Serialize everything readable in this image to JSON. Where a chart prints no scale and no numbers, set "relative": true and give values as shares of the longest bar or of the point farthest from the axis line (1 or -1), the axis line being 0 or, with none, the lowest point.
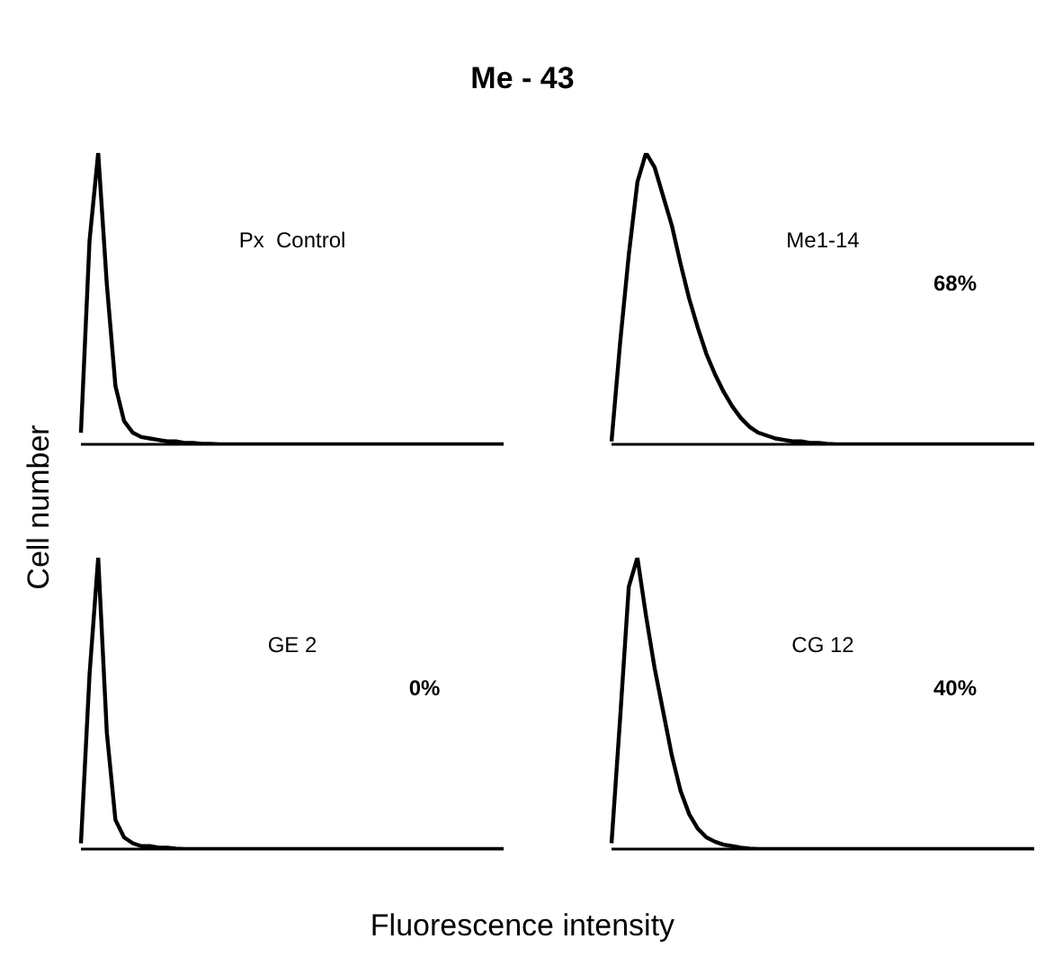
{
  "chart_data": [
    {
      "type": "line",
      "title": "Me - 43",
      "ylabel": "Cell number",
      "relative": true,
      "color": "#000000",
      "annotations": [
        "Px  Control"
      ],
      "categories": [
        null,
        null,
        null,
        null,
        null,
        null,
        null,
        null,
        null,
        null,
        null,
        null,
        null,
        null,
        null,
        null,
        null,
        null,
        null,
        null,
        null,
        null,
        null,
        null,
        null,
        null,
        null,
        null,
        null,
        null,
        null,
        null,
        null,
        null,
        null,
        null,
        null,
        null,
        null,
        null,
        null,
        null,
        null,
        null,
        null,
        null,
        null,
        null,
        null,
        null
      ],
      "values": [
        0.04,
        0.7,
        1.0,
        0.55,
        0.2,
        0.08,
        0.04,
        0.025,
        0.02,
        0.015,
        0.01,
        0.01,
        0.005,
        0.005,
        0.002,
        0.002,
        0,
        0,
        0,
        0,
        0,
        0,
        0,
        0,
        0,
        0,
        0,
        0,
        0,
        0,
        0,
        0,
        0,
        0,
        0,
        0,
        0,
        0,
        0,
        0,
        0,
        0,
        0,
        0,
        0,
        0,
        0,
        0,
        0,
        0
      ]
    },
    {
      "type": "line",
      "relative": true,
      "color": "#000000",
      "annotations": [
        "Me1-14",
        "68%"
      ],
      "categories": [
        null,
        null,
        null,
        null,
        null,
        null,
        null,
        null,
        null,
        null,
        null,
        null,
        null,
        null,
        null,
        null,
        null,
        null,
        null,
        null,
        null,
        null,
        null,
        null,
        null,
        null,
        null,
        null,
        null,
        null,
        null,
        null,
        null,
        null,
        null,
        null,
        null,
        null,
        null,
        null,
        null,
        null,
        null,
        null,
        null,
        null,
        null,
        null,
        null,
        null
      ],
      "values": [
        0.01,
        0.35,
        0.65,
        0.9,
        1.0,
        0.95,
        0.85,
        0.75,
        0.62,
        0.5,
        0.4,
        0.31,
        0.24,
        0.18,
        0.13,
        0.09,
        0.06,
        0.04,
        0.03,
        0.02,
        0.015,
        0.01,
        0.01,
        0.005,
        0.005,
        0.002,
        0,
        0,
        0,
        0,
        0,
        0,
        0,
        0,
        0,
        0,
        0,
        0,
        0,
        0,
        0,
        0,
        0,
        0,
        0,
        0,
        0,
        0,
        0,
        0
      ]
    },
    {
      "type": "line",
      "xlabel": "Fluorescence intensity",
      "relative": true,
      "color": "#000000",
      "annotations": [
        "GE 2",
        "0%"
      ],
      "categories": [
        null,
        null,
        null,
        null,
        null,
        null,
        null,
        null,
        null,
        null,
        null,
        null,
        null,
        null,
        null,
        null,
        null,
        null,
        null,
        null,
        null,
        null,
        null,
        null,
        null,
        null,
        null,
        null,
        null,
        null,
        null,
        null,
        null,
        null,
        null,
        null,
        null,
        null,
        null,
        null,
        null,
        null,
        null,
        null,
        null,
        null,
        null,
        null,
        null,
        null
      ],
      "values": [
        0.02,
        0.6,
        1.0,
        0.4,
        0.1,
        0.04,
        0.02,
        0.01,
        0.01,
        0.005,
        0.005,
        0.002,
        0,
        0,
        0,
        0,
        0,
        0,
        0,
        0,
        0,
        0,
        0,
        0,
        0,
        0,
        0,
        0,
        0,
        0,
        0,
        0,
        0,
        0,
        0,
        0,
        0,
        0,
        0,
        0,
        0,
        0,
        0,
        0,
        0,
        0,
        0,
        0,
        0,
        0
      ]
    },
    {
      "type": "line",
      "relative": true,
      "color": "#000000",
      "annotations": [
        "CG 12",
        "40%"
      ],
      "categories": [
        null,
        null,
        null,
        null,
        null,
        null,
        null,
        null,
        null,
        null,
        null,
        null,
        null,
        null,
        null,
        null,
        null,
        null,
        null,
        null,
        null,
        null,
        null,
        null,
        null,
        null,
        null,
        null,
        null,
        null,
        null,
        null,
        null,
        null,
        null,
        null,
        null,
        null,
        null,
        null,
        null,
        null,
        null,
        null,
        null,
        null,
        null,
        null,
        null,
        null
      ],
      "values": [
        0.02,
        0.45,
        0.9,
        1.0,
        0.8,
        0.62,
        0.47,
        0.32,
        0.2,
        0.12,
        0.07,
        0.04,
        0.025,
        0.015,
        0.01,
        0.005,
        0.002,
        0,
        0,
        0,
        0,
        0,
        0,
        0,
        0,
        0,
        0,
        0,
        0,
        0,
        0,
        0,
        0,
        0,
        0,
        0,
        0,
        0,
        0,
        0,
        0,
        0,
        0,
        0,
        0,
        0,
        0,
        0,
        0,
        0
      ]
    }
  ]
}
